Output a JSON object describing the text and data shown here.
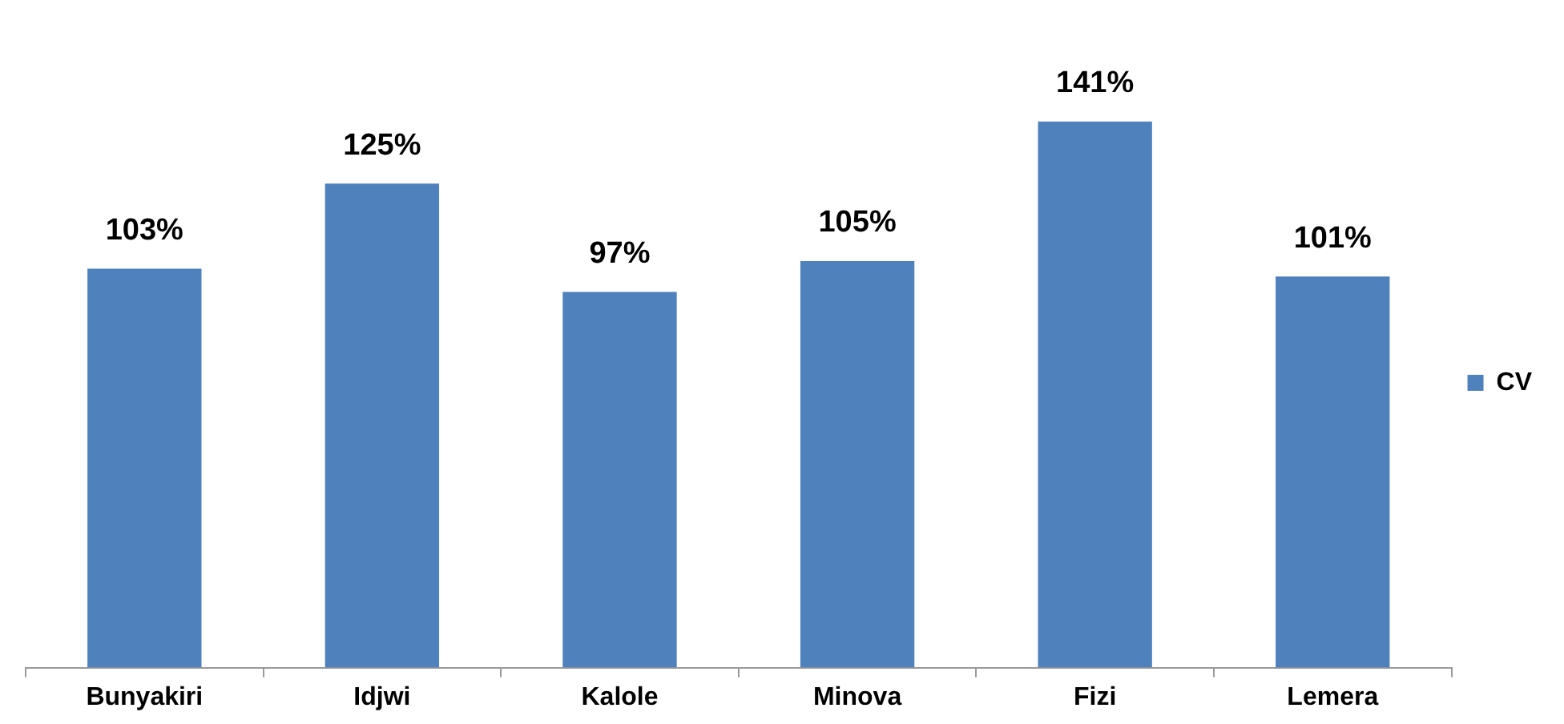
{
  "chart_data": {
    "type": "bar",
    "categories": [
      "Bunyakiri",
      "Idjwi",
      "Kalole",
      "Minova",
      "Fizi",
      "Lemera"
    ],
    "series": [
      {
        "name": "CV",
        "color": "#4f81bd",
        "values": [
          103,
          125,
          97,
          105,
          141,
          101
        ],
        "value_labels": [
          "103%",
          "125%",
          "97%",
          "105%",
          "141%",
          "101%"
        ]
      }
    ],
    "legend": "right",
    "grid": false
  }
}
